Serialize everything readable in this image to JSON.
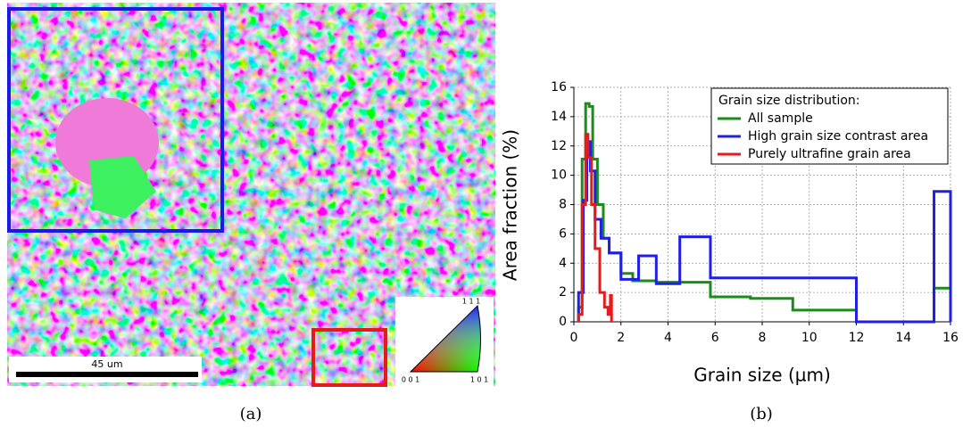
{
  "panel_a": {
    "scale_bar": "45 um",
    "ipf_top": "1 1 1",
    "ipf_left": "0 0 1",
    "ipf_right": "1 0 1",
    "caption": "(a)"
  },
  "panel_b": {
    "caption": "(b)"
  },
  "chart_data": {
    "type": "line",
    "xlabel": "Grain size (µm)",
    "ylabel": "Area fraction (%)",
    "legend_title": "Grain size distribution:",
    "legend": "upper right",
    "grid": true,
    "xlim": [
      0,
      16
    ],
    "xticks": [
      0,
      2,
      4,
      6,
      8,
      10,
      12,
      14,
      16
    ],
    "ylim": [
      0,
      16
    ],
    "yticks": [
      0,
      2,
      4,
      6,
      8,
      10,
      12,
      14,
      16
    ],
    "series": [
      {
        "name": "All sample",
        "color": "#1a8c1a",
        "x": [
          0.2,
          0.2,
          0.35,
          0.35,
          0.5,
          0.5,
          0.65,
          0.65,
          0.8,
          0.8,
          1.0,
          1.0,
          1.25,
          1.25,
          1.5,
          1.5,
          2.0,
          2.0,
          2.5,
          2.5,
          3.5,
          3.5,
          5.8,
          5.8,
          7.5,
          7.5,
          9.3,
          9.3,
          12.0,
          12.0,
          15.3,
          15.3,
          16.0
        ],
        "values": [
          0,
          1.0,
          1.0,
          11.1,
          11.1,
          14.9,
          14.9,
          14.7,
          14.7,
          11.1,
          11.1,
          8.0,
          8.0,
          5.7,
          5.7,
          4.7,
          4.7,
          3.3,
          3.3,
          2.8,
          2.8,
          2.7,
          2.7,
          1.7,
          1.7,
          1.6,
          1.6,
          0.8,
          0.8,
          0,
          0,
          2.3,
          2.3
        ]
      },
      {
        "name": "High grain size contrast area",
        "color": "#1f1fe6",
        "x": [
          0.2,
          0.2,
          0.4,
          0.4,
          0.55,
          0.55,
          0.7,
          0.7,
          0.9,
          0.9,
          1.15,
          1.15,
          1.5,
          1.5,
          2.0,
          2.0,
          2.75,
          2.75,
          3.5,
          3.5,
          4.5,
          4.5,
          5.8,
          5.8,
          12.0,
          12.0,
          15.3,
          15.3,
          16.0,
          16.0
        ],
        "values": [
          0,
          2.0,
          2.0,
          8.3,
          8.3,
          12.3,
          12.3,
          10.3,
          10.3,
          7.0,
          7.0,
          5.7,
          5.7,
          4.7,
          4.7,
          2.9,
          2.9,
          4.5,
          4.5,
          2.6,
          2.6,
          5.8,
          5.8,
          3.0,
          3.0,
          0,
          0,
          8.9,
          8.9,
          0
        ]
      },
      {
        "name": "Purely ultrafine grain area",
        "color": "#e61a1a",
        "x": [
          0.2,
          0.2,
          0.35,
          0.35,
          0.5,
          0.5,
          0.6,
          0.6,
          0.75,
          0.75,
          0.9,
          0.9,
          1.1,
          1.1,
          1.3,
          1.3,
          1.45,
          1.45,
          1.55,
          1.55,
          1.6,
          1.6
        ],
        "values": [
          0,
          0.5,
          0.5,
          8.0,
          8.0,
          12.8,
          12.8,
          11.2,
          11.2,
          8.0,
          8.0,
          5.0,
          5.0,
          2.0,
          2.0,
          1.0,
          1.0,
          0.5,
          0.5,
          1.8,
          1.8,
          0
        ]
      }
    ]
  }
}
